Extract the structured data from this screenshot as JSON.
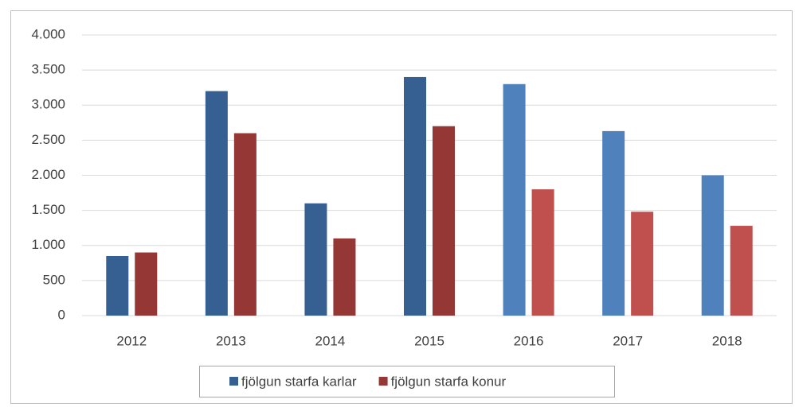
{
  "chart_data": {
    "type": "bar",
    "categories": [
      "2012",
      "2013",
      "2014",
      "2015",
      "2016",
      "2017",
      "2018"
    ],
    "series": [
      {
        "name": "fjölgun starfa karlar",
        "color": "#366092",
        "colors": [
          "#366092",
          "#366092",
          "#366092",
          "#366092",
          "#4f81bd",
          "#4f81bd",
          "#4f81bd"
        ],
        "values": [
          850,
          3200,
          1600,
          3400,
          3300,
          2630,
          2000
        ]
      },
      {
        "name": "fjölgun starfa konur",
        "color": "#953735",
        "colors": [
          "#953735",
          "#953735",
          "#953735",
          "#953735",
          "#c0504d",
          "#c0504d",
          "#c0504d"
        ],
        "values": [
          900,
          2600,
          1100,
          2700,
          1800,
          1480,
          1280
        ]
      }
    ],
    "ylim": [
      0,
      4000
    ],
    "yticks": [
      0,
      500,
      {
        "value": 1000,
        "label": "1.000"
      },
      {
        "value": 1500,
        "label": "1.500"
      },
      {
        "value": 2000,
        "label": "2.000"
      },
      {
        "value": 2500,
        "label": "2.500"
      },
      {
        "value": 3000,
        "label": "3.000"
      },
      {
        "value": 3500,
        "label": "3.500"
      },
      {
        "value": 4000,
        "label": "4.000"
      }
    ],
    "grid": true,
    "legend": "bottom"
  }
}
